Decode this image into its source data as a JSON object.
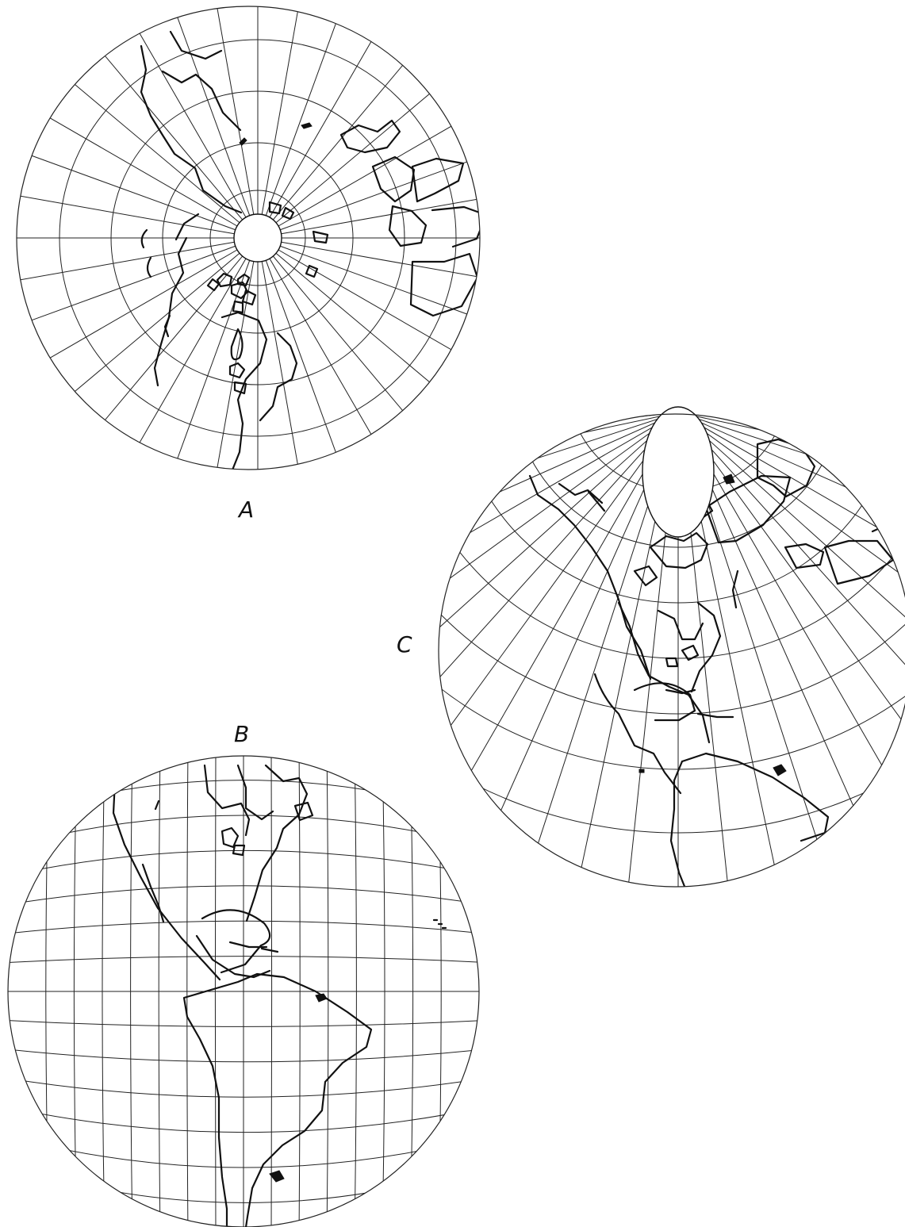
{
  "figure": {
    "panels": [
      {
        "id": "A",
        "label": "A"
      },
      {
        "id": "B",
        "label": "B"
      },
      {
        "id": "C",
        "label": "C"
      }
    ]
  }
}
